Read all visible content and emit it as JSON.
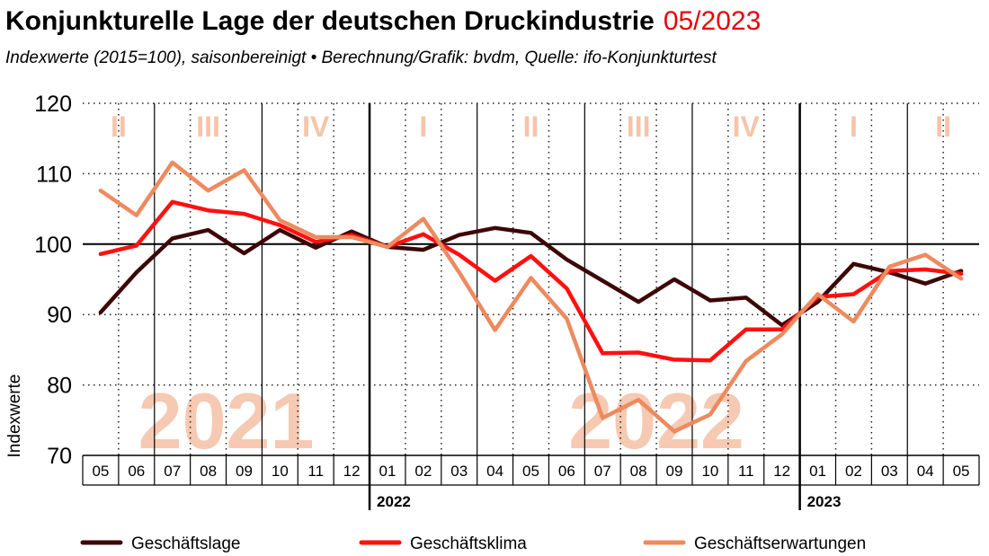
{
  "title": "Konjunkturelle Lage der deutschen Druckindustrie",
  "title_date": "05/2023",
  "subtitle": "Indexwerte (2015=100), saisonbereinigt • Berechnung/Grafik: bvdm, Quelle: ifo-Konjunkturtest",
  "chart_data": {
    "type": "line",
    "title": "Konjunkturelle Lage der deutschen Druckindustrie",
    "ylabel": "Indexwerte",
    "xlabel": "",
    "ylim": [
      70,
      120
    ],
    "yticks": [
      70,
      80,
      90,
      100,
      110,
      120
    ],
    "reference_line": 100,
    "grid": true,
    "legend_position": "bottom",
    "categories": [
      "05",
      "06",
      "07",
      "08",
      "09",
      "10",
      "11",
      "12",
      "01",
      "02",
      "03",
      "04",
      "05",
      "06",
      "07",
      "08",
      "09",
      "10",
      "11",
      "12",
      "01",
      "02",
      "03",
      "04",
      "05"
    ],
    "year_labels": [
      {
        "label": "2022",
        "start_index": 8
      },
      {
        "label": "2023",
        "start_index": 20
      }
    ],
    "background_years": [
      {
        "label": "2021",
        "start_index": 0,
        "end_index": 7
      },
      {
        "label": "2022",
        "start_index": 12,
        "end_index": 19
      }
    ],
    "quarters": [
      {
        "label": "II",
        "start_index": 0,
        "end_index": 1
      },
      {
        "label": "III",
        "start_index": 2,
        "end_index": 4
      },
      {
        "label": "IV",
        "start_index": 5,
        "end_index": 7
      },
      {
        "label": "I",
        "start_index": 8,
        "end_index": 10
      },
      {
        "label": "II",
        "start_index": 11,
        "end_index": 13
      },
      {
        "label": "III",
        "start_index": 14,
        "end_index": 16
      },
      {
        "label": "IV",
        "start_index": 17,
        "end_index": 19
      },
      {
        "label": "I",
        "start_index": 20,
        "end_index": 22
      },
      {
        "label": "II",
        "start_index": 23,
        "end_index": 24
      }
    ],
    "series": [
      {
        "name": "Geschäftslage",
        "color": "#3d0707",
        "values": [
          90.3,
          96.0,
          100.8,
          102.0,
          98.7,
          102.0,
          99.5,
          101.8,
          99.6,
          99.2,
          101.3,
          102.3,
          101.6,
          97.8,
          94.8,
          91.8,
          95.0,
          92.0,
          92.4,
          88.5,
          91.8,
          97.2,
          96.0,
          94.4,
          96.2
        ]
      },
      {
        "name": "Geschäftsklima",
        "color": "#ff1010",
        "values": [
          98.6,
          99.8,
          106.0,
          104.8,
          104.3,
          102.7,
          100.3,
          101.3,
          99.6,
          101.4,
          98.5,
          94.8,
          98.3,
          93.7,
          84.5,
          84.6,
          83.6,
          83.5,
          87.9,
          87.9,
          92.5,
          92.9,
          96.2,
          96.4,
          95.8
        ]
      },
      {
        "name": "Geschäftserwartungen",
        "color": "#ed8a5f",
        "values": [
          107.6,
          104.1,
          111.6,
          107.6,
          110.5,
          103.4,
          101.0,
          101.0,
          99.6,
          103.6,
          96.0,
          87.8,
          95.2,
          89.4,
          75.3,
          77.9,
          73.4,
          75.8,
          83.4,
          87.2,
          92.9,
          89.0,
          96.8,
          98.5,
          95.1
        ]
      }
    ]
  }
}
